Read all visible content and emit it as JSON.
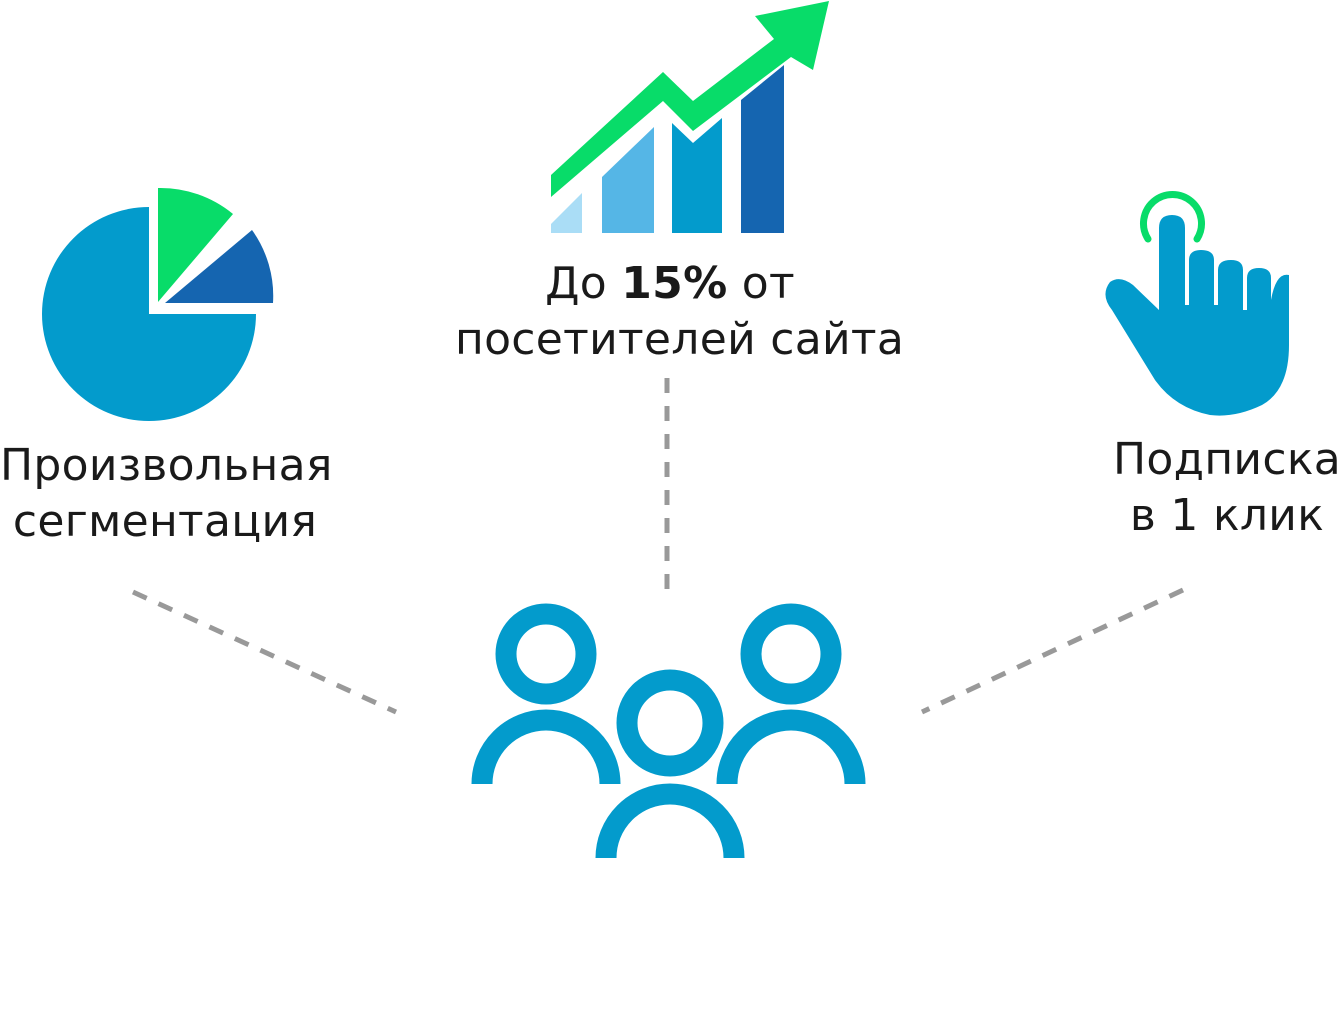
{
  "colors": {
    "primary_blue": "#039bcc",
    "dark_blue": "#1565b0",
    "light_blue": "#55b6e6",
    "pale_blue": "#aaddf6",
    "green": "#08dc69",
    "connector_gray": "#999999",
    "text": "#1a1a1a"
  },
  "features": [
    {
      "icon": "pie-chart-icon",
      "lines": [
        "Произвольная",
        "сегментация"
      ]
    },
    {
      "icon": "growth-chart-icon",
      "line1": {
        "prefix": "До ",
        "emphasis": "15%",
        "suffix": " от"
      },
      "line2": "посетителей сайта"
    },
    {
      "icon": "tap-hand-icon",
      "lines": [
        "Подписка",
        "в 1 клик"
      ]
    }
  ],
  "center_icon": "users-group-icon"
}
